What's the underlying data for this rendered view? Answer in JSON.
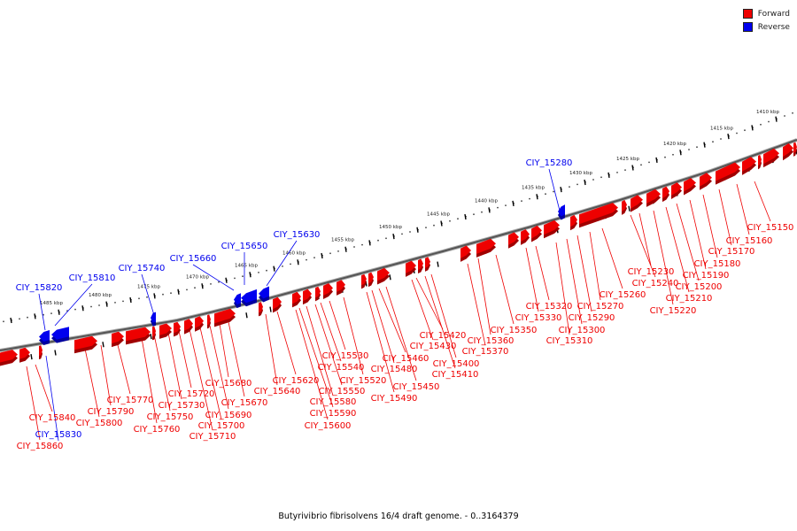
{
  "title": "Butyrivibrio fibrisolvens 16/4 draft genome. - 0..3164379",
  "colors": {
    "forward": "#ee0000",
    "reverse": "#0000ee"
  },
  "legend": [
    {
      "label": "Forward",
      "color": "#ee0000"
    },
    {
      "label": "Reverse",
      "color": "#0000ee"
    }
  ],
  "scale_labels": [
    "1410 kbp",
    "1415 kbp",
    "1420 kbp",
    "1425 kbp",
    "1430 kbp",
    "1435 kbp",
    "1440 kbp",
    "1445 kbp",
    "1450 kbp",
    "1455 kbp",
    "1460 kbp",
    "1465 kbp",
    "1470 kbp",
    "1475 kbp",
    "1480 kbp",
    "1485 kbp"
  ],
  "genes": {
    "reverse": [
      "CIY_15280",
      "CIY_15630",
      "CIY_15650",
      "CIY_15660",
      "CIY_15740",
      "CIY_15810",
      "CIY_15820",
      "CIY_15830"
    ],
    "forward": [
      "CIY_15150",
      "CIY_15160",
      "CIY_15170",
      "CIY_15180",
      "CIY_15190",
      "CIY_15200",
      "CIY_15210",
      "CIY_15220",
      "CIY_15230",
      "CIY_15240",
      "CIY_15260",
      "CIY_15270",
      "CIY_15290",
      "CIY_15300",
      "CIY_15310",
      "CIY_15320",
      "CIY_15330",
      "CIY_15350",
      "CIY_15360",
      "CIY_15370",
      "CIY_15400",
      "CIY_15410",
      "CIY_15420",
      "CIY_15430",
      "CIY_15450",
      "CIY_15460",
      "CIY_15480",
      "CIY_15490",
      "CIY_15520",
      "CIY_15530",
      "CIY_15540",
      "CIY_15550",
      "CIY_15580",
      "CIY_15590",
      "CIY_15600",
      "CIY_15620",
      "CIY_15640",
      "CIY_15670",
      "CIY_15680",
      "CIY_15690",
      "CIY_15700",
      "CIY_15710",
      "CIY_15720",
      "CIY_15730",
      "CIY_15750",
      "CIY_15760",
      "CIY_15770",
      "CIY_15790",
      "CIY_15800",
      "CIY_15840",
      "CIY_15860"
    ]
  }
}
